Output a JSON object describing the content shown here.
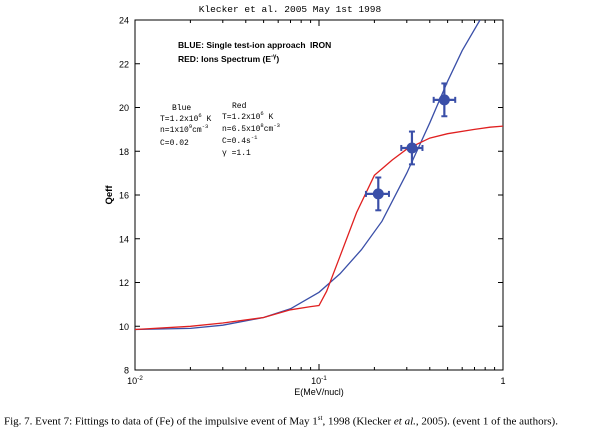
{
  "chart_data": {
    "type": "line",
    "title": "Klecker et al. 2005  May 1st 1998",
    "xlabel": "E(MeV/nucl)",
    "ylabel": "Qeff",
    "xscale": "log",
    "xlim": [
      0.01,
      1
    ],
    "ylim": [
      8,
      24
    ],
    "x_tick_labels": [
      "10",
      "10",
      "1"
    ],
    "x_tick_exponents": [
      "-2",
      "-1",
      ""
    ],
    "y_ticks": [
      8,
      10,
      12,
      14,
      16,
      18,
      20,
      22,
      24
    ],
    "legend": {
      "blue": "BLUE: Single test-ion approach",
      "red": "RED: Ions Spectrum (E",
      "red_exp": "-γ",
      "red_close": ")",
      "element": "IRON"
    },
    "annotations": {
      "blue_block": {
        "title": "Blue",
        "t_line": "T=1.2x10",
        "t_exp": "6",
        "t_unit": " K",
        "n_line": "n=1x10",
        "n_exp": "9",
        "n_unit": "cm",
        "n_unit_exp": "-3",
        "c_line": "C=0.02"
      },
      "red_block": {
        "title": "Red",
        "t_line": "T=1.2x10",
        "t_exp": "6",
        "t_unit": " K",
        "n_line": "n=6.5x10",
        "n_exp": "8",
        "n_unit": "cm",
        "n_unit_exp": "-3",
        "c_line": "C=0.4s",
        "c_exp": "-1",
        "g_line": "γ =1.1"
      }
    },
    "series": [
      {
        "name": "Single test-ion approach",
        "color": "#3a4fa8",
        "x": [
          0.01,
          0.02,
          0.03,
          0.05,
          0.07,
          0.1,
          0.13,
          0.17,
          0.22,
          0.3,
          0.4,
          0.5,
          0.6,
          0.75
        ],
        "y": [
          9.85,
          9.9,
          10.05,
          10.4,
          10.8,
          11.55,
          12.4,
          13.5,
          14.8,
          17.0,
          19.3,
          21.2,
          22.6,
          24.0
        ]
      },
      {
        "name": "Ions Spectrum",
        "color": "#e02020",
        "x": [
          0.01,
          0.02,
          0.03,
          0.05,
          0.07,
          0.09,
          0.1,
          0.11,
          0.13,
          0.16,
          0.2,
          0.25,
          0.3,
          0.4,
          0.5,
          0.7,
          0.85,
          1.0
        ],
        "y": [
          9.85,
          10.0,
          10.15,
          10.4,
          10.75,
          10.9,
          10.95,
          11.6,
          13.2,
          15.2,
          16.9,
          17.6,
          18.1,
          18.6,
          18.8,
          19.0,
          19.1,
          19.15
        ]
      }
    ],
    "data_points": {
      "name": "Fe data",
      "color": "#3a4fa8",
      "x": [
        0.21,
        0.32,
        0.48
      ],
      "y": [
        16.05,
        18.15,
        20.35
      ],
      "yerr": [
        0.75,
        0.75,
        0.75
      ],
      "xerr_lo": [
        0.03,
        0.04,
        0.06
      ],
      "xerr_hi": [
        0.03,
        0.045,
        0.07
      ]
    }
  },
  "caption": {
    "pre": "Fig. 7. Event 7: Fittings to data of (Fe) of the impulsive event of May 1",
    "sup": "st",
    "mid": ", 1998 (Klecker ",
    "ital": "et al.",
    "post": ", 2005). (event 1 of the authors)."
  }
}
